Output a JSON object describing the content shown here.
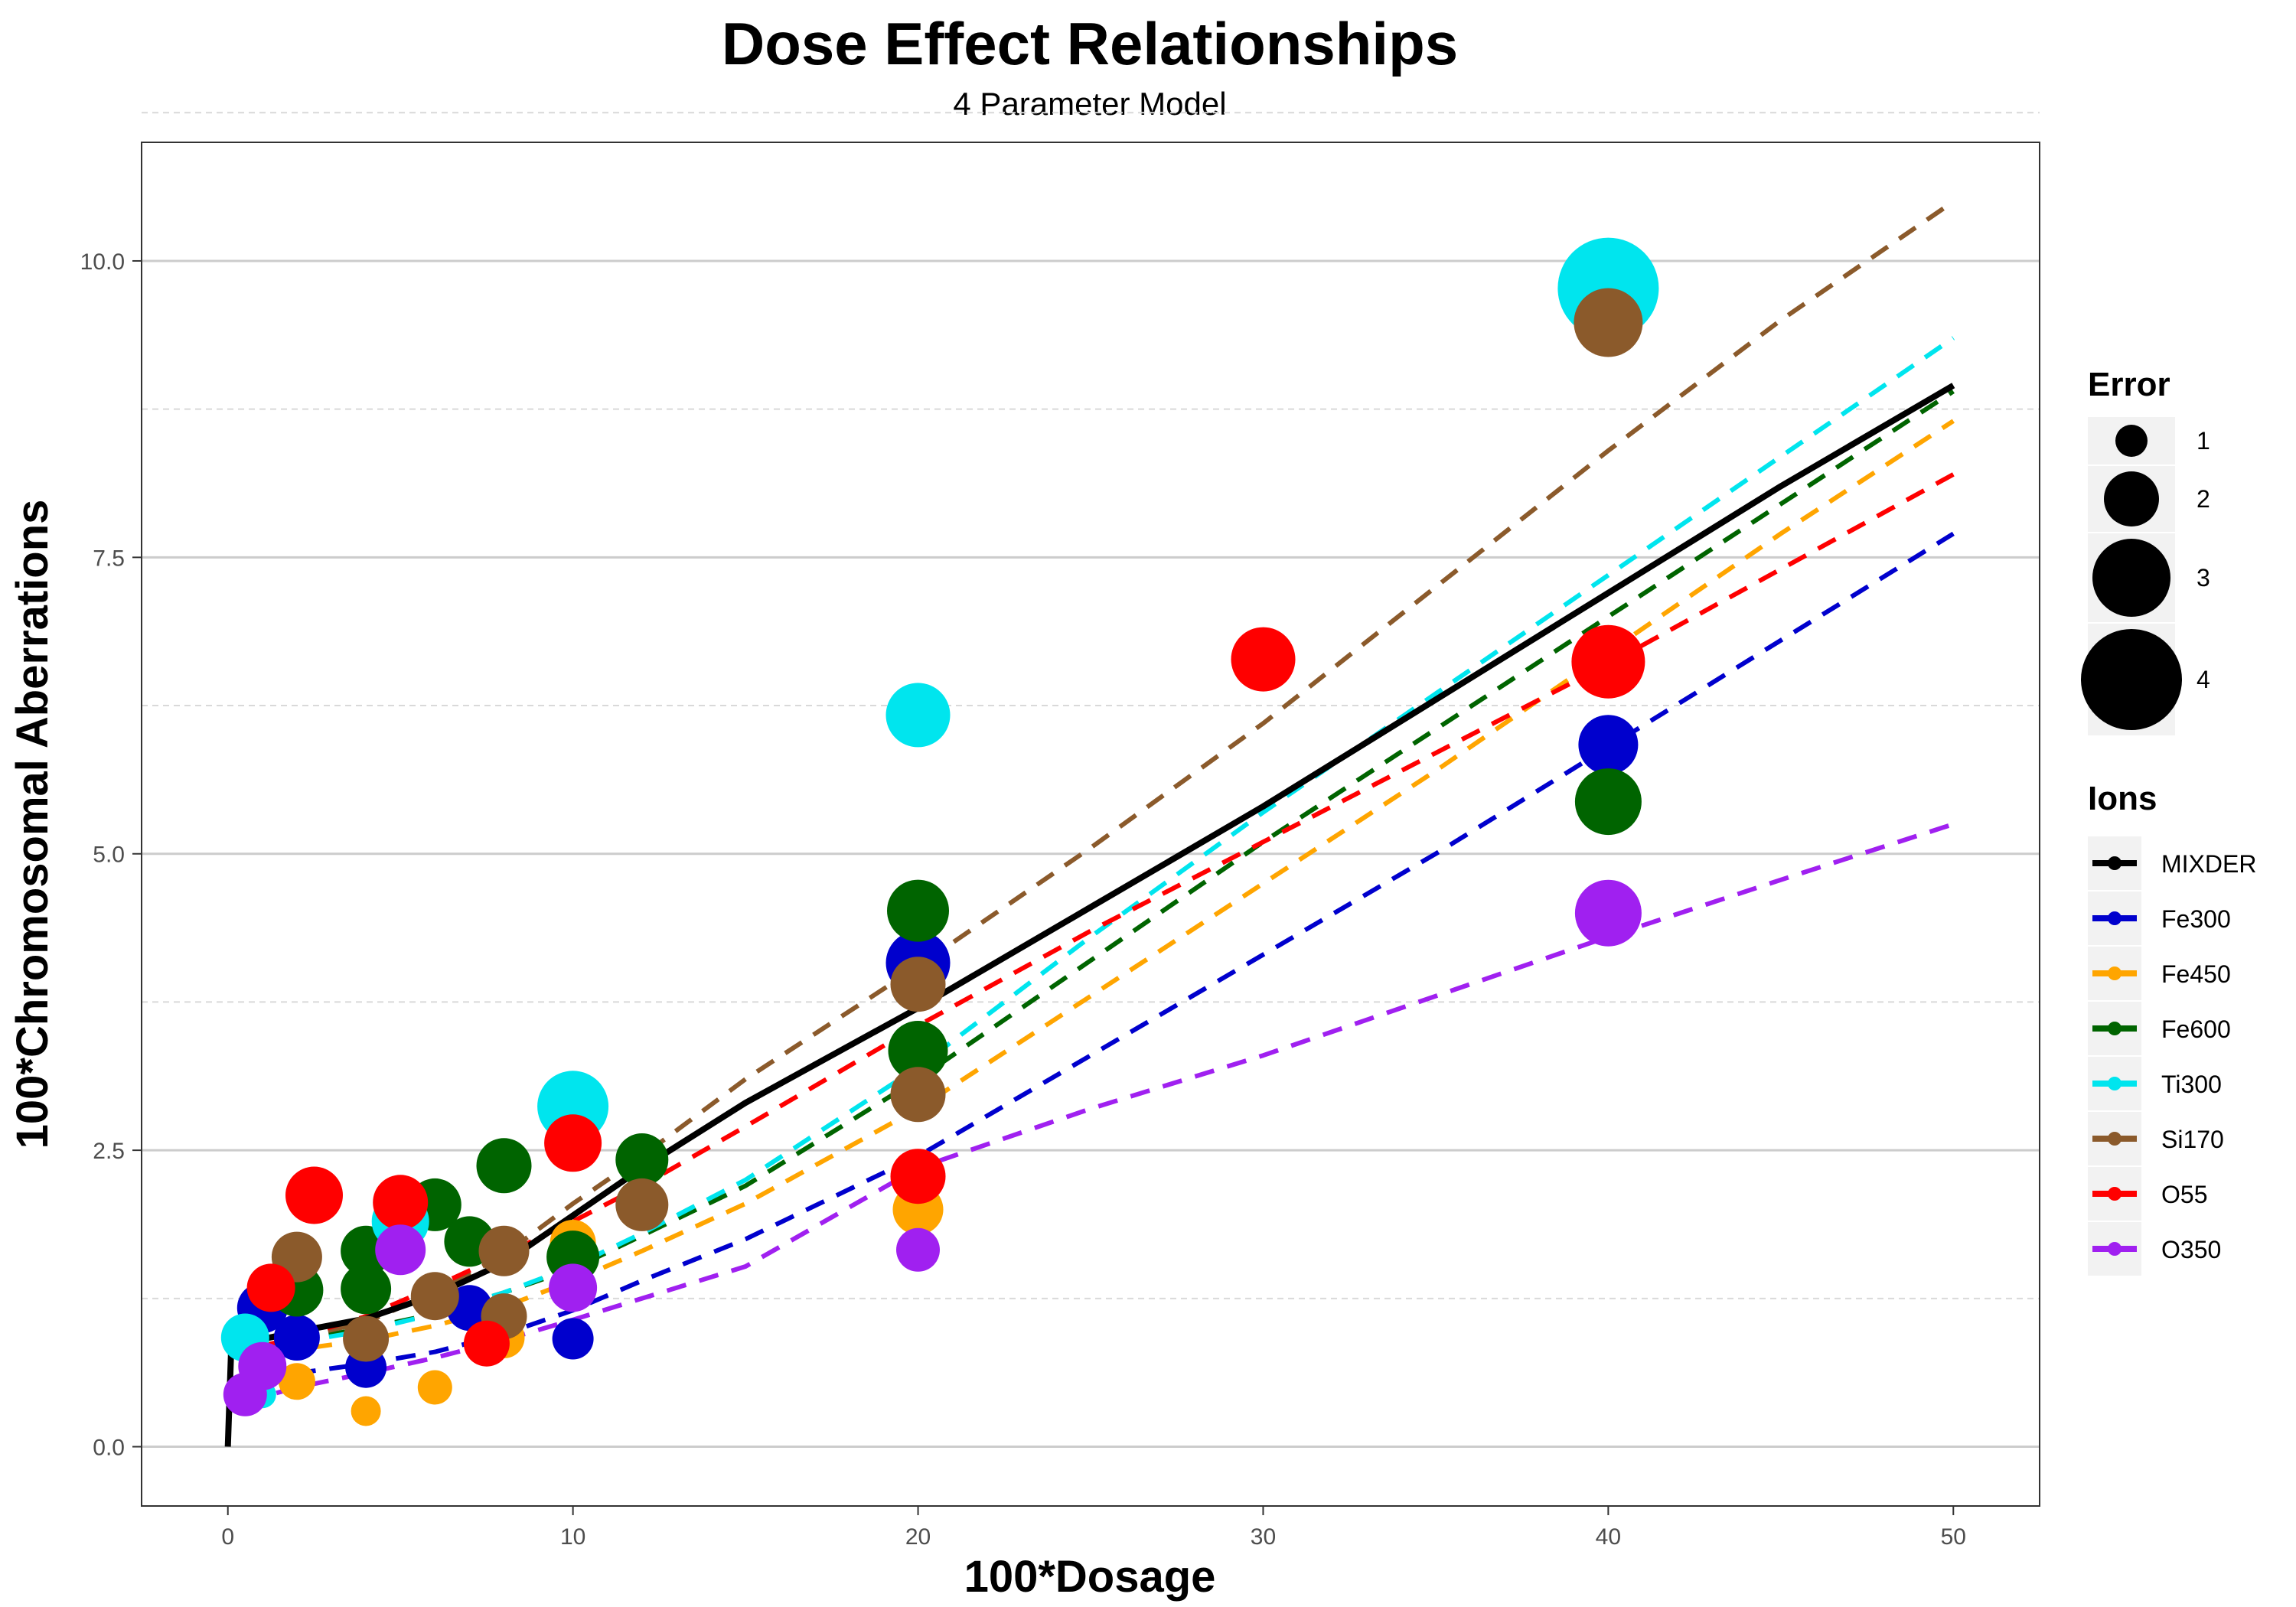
{
  "chart_data": {
    "type": "scatter",
    "title": "Dose Effect Relationships",
    "subtitle": "4 Parameter Model",
    "xlabel": "100*Dosage",
    "ylabel": "100*Chromosomal Aberrations",
    "xlim": [
      -2.5,
      52.5
    ],
    "ylim": [
      -0.5,
      11.0
    ],
    "x_ticks": [
      0,
      10,
      20,
      30,
      40,
      50
    ],
    "y_ticks": [
      0.0,
      2.5,
      5.0,
      7.5,
      10.0
    ],
    "x_tick_labels": [
      "0",
      "10",
      "20",
      "30",
      "40",
      "50"
    ],
    "y_tick_labels": [
      "0.0",
      "2.5",
      "5.0",
      "7.5",
      "10.0"
    ],
    "grid": true,
    "legend_position": "right",
    "size_legend": {
      "title": "Error",
      "entries": [
        {
          "label": "1",
          "value": 1
        },
        {
          "label": "2",
          "value": 2
        },
        {
          "label": "3",
          "value": 3
        },
        {
          "label": "4",
          "value": 4
        }
      ]
    },
    "color_legend": {
      "title": "Ions"
    },
    "series": [
      {
        "name": "MIXDER",
        "color": "#000000",
        "line_style": "solid",
        "curve": [
          [
            0,
            0.0
          ],
          [
            0.1,
            0.85
          ],
          [
            2,
            0.97
          ],
          [
            4,
            1.08
          ],
          [
            6,
            1.28
          ],
          [
            8,
            1.55
          ],
          [
            10,
            1.95
          ],
          [
            12,
            2.35
          ],
          [
            15,
            2.9
          ],
          [
            20,
            3.7
          ],
          [
            25,
            4.55
          ],
          [
            30,
            5.4
          ],
          [
            35,
            6.3
          ],
          [
            40,
            7.2
          ],
          [
            45,
            8.1
          ],
          [
            50,
            8.95
          ]
        ],
        "points": []
      },
      {
        "name": "Fe300",
        "color": "#0000cd",
        "line_style": "dashed",
        "curve": [
          [
            1,
            0.6
          ],
          [
            2,
            0.62
          ],
          [
            4,
            0.7
          ],
          [
            6,
            0.8
          ],
          [
            8,
            0.95
          ],
          [
            10,
            1.15
          ],
          [
            12,
            1.4
          ],
          [
            15,
            1.75
          ],
          [
            20,
            2.45
          ],
          [
            25,
            3.3
          ],
          [
            30,
            4.15
          ],
          [
            35,
            5.0
          ],
          [
            40,
            5.9
          ],
          [
            45,
            6.8
          ],
          [
            50,
            7.7
          ]
        ],
        "points": [
          {
            "x": 1,
            "y": 1.17,
            "error": 1.8
          },
          {
            "x": 2,
            "y": 0.92,
            "error": 1.6
          },
          {
            "x": 4,
            "y": 0.67,
            "error": 1.4
          },
          {
            "x": 7,
            "y": 1.17,
            "error": 1.6
          },
          {
            "x": 10,
            "y": 0.91,
            "error": 1.4
          },
          {
            "x": 20,
            "y": 4.08,
            "error": 2.4
          },
          {
            "x": 40,
            "y": 5.92,
            "error": 2.2
          }
        ]
      },
      {
        "name": "Fe450",
        "color": "#ffa500",
        "line_style": "dashed",
        "curve": [
          [
            0.5,
            0.8
          ],
          [
            2,
            0.82
          ],
          [
            4,
            0.9
          ],
          [
            6,
            1.02
          ],
          [
            8,
            1.18
          ],
          [
            10,
            1.4
          ],
          [
            12,
            1.65
          ],
          [
            15,
            2.05
          ],
          [
            20,
            2.85
          ],
          [
            25,
            3.8
          ],
          [
            30,
            4.75
          ],
          [
            35,
            5.7
          ],
          [
            40,
            6.7
          ],
          [
            45,
            7.7
          ],
          [
            50,
            8.65
          ]
        ],
        "points": [
          {
            "x": 2,
            "y": 0.55,
            "error": 1.2
          },
          {
            "x": 4,
            "y": 0.3,
            "error": 0.9
          },
          {
            "x": 6,
            "y": 0.5,
            "error": 1.1
          },
          {
            "x": 8,
            "y": 0.92,
            "error": 1.4
          },
          {
            "x": 10,
            "y": 1.72,
            "error": 1.6
          },
          {
            "x": 20,
            "y": 2.0,
            "error": 1.8
          },
          {
            "x": 40,
            "y": 4.45,
            "error": 1.0
          }
        ]
      },
      {
        "name": "Fe600",
        "color": "#006400",
        "line_style": "dashed",
        "curve": [
          [
            1,
            0.85
          ],
          [
            2,
            0.9
          ],
          [
            4,
            1.0
          ],
          [
            6,
            1.12
          ],
          [
            8,
            1.3
          ],
          [
            10,
            1.5
          ],
          [
            12,
            1.78
          ],
          [
            15,
            2.2
          ],
          [
            20,
            3.1
          ],
          [
            25,
            4.1
          ],
          [
            30,
            5.1
          ],
          [
            35,
            6.05
          ],
          [
            40,
            7.0
          ],
          [
            45,
            7.95
          ],
          [
            50,
            8.9
          ]
        ],
        "points": [
          {
            "x": 2,
            "y": 1.32,
            "error": 1.9
          },
          {
            "x": 4,
            "y": 1.65,
            "error": 1.8
          },
          {
            "x": 4,
            "y": 1.33,
            "error": 1.8
          },
          {
            "x": 6,
            "y": 2.04,
            "error": 1.9
          },
          {
            "x": 7,
            "y": 1.73,
            "error": 1.8
          },
          {
            "x": 8,
            "y": 2.37,
            "error": 2.0
          },
          {
            "x": 10,
            "y": 1.6,
            "error": 1.9
          },
          {
            "x": 12,
            "y": 2.42,
            "error": 1.9
          },
          {
            "x": 20,
            "y": 4.52,
            "error": 2.3
          },
          {
            "x": 20,
            "y": 3.34,
            "error": 2.2
          },
          {
            "x": 40,
            "y": 5.44,
            "error": 2.5
          }
        ]
      },
      {
        "name": "Ti300",
        "color": "#00e5ee",
        "line_style": "dashed",
        "curve": [
          [
            1,
            0.85
          ],
          [
            2,
            0.88
          ],
          [
            4,
            0.98
          ],
          [
            6,
            1.12
          ],
          [
            8,
            1.3
          ],
          [
            10,
            1.52
          ],
          [
            12,
            1.8
          ],
          [
            15,
            2.25
          ],
          [
            20,
            3.2
          ],
          [
            25,
            4.3
          ],
          [
            30,
            5.35
          ],
          [
            35,
            6.35
          ],
          [
            40,
            7.35
          ],
          [
            45,
            8.35
          ],
          [
            50,
            9.35
          ]
        ],
        "points": [
          {
            "x": 0.5,
            "y": 0.92,
            "error": 1.7
          },
          {
            "x": 1,
            "y": 0.44,
            "error": 0.8
          },
          {
            "x": 5,
            "y": 1.9,
            "error": 2.1
          },
          {
            "x": 10,
            "y": 2.87,
            "error": 2.7
          },
          {
            "x": 20,
            "y": 6.17,
            "error": 2.4
          },
          {
            "x": 40,
            "y": 9.77,
            "error": 4.0
          }
        ]
      },
      {
        "name": "Si170",
        "color": "#8b5a2b",
        "line_style": "dashed",
        "curve": [
          [
            1,
            0.85
          ],
          [
            2,
            0.92
          ],
          [
            4,
            1.05
          ],
          [
            6,
            1.3
          ],
          [
            8,
            1.62
          ],
          [
            10,
            2.05
          ],
          [
            12,
            2.45
          ],
          [
            15,
            3.1
          ],
          [
            20,
            4.05
          ],
          [
            25,
            5.05
          ],
          [
            30,
            6.1
          ],
          [
            35,
            7.25
          ],
          [
            40,
            8.4
          ],
          [
            45,
            9.5
          ],
          [
            50,
            10.5
          ]
        ],
        "points": [
          {
            "x": 1,
            "y": 0.68,
            "error": 1.4
          },
          {
            "x": 2,
            "y": 1.6,
            "error": 1.8
          },
          {
            "x": 4,
            "y": 0.91,
            "error": 1.6
          },
          {
            "x": 6,
            "y": 1.27,
            "error": 1.7
          },
          {
            "x": 8,
            "y": 1.65,
            "error": 1.8
          },
          {
            "x": 8,
            "y": 1.1,
            "error": 1.6
          },
          {
            "x": 12,
            "y": 2.04,
            "error": 1.9
          },
          {
            "x": 20,
            "y": 3.9,
            "error": 2.0
          },
          {
            "x": 20,
            "y": 2.97,
            "error": 2.0
          },
          {
            "x": 40,
            "y": 9.48,
            "error": 2.6
          }
        ]
      },
      {
        "name": "O55",
        "color": "#ff0000",
        "line_style": "dashed",
        "curve": [
          [
            1,
            0.85
          ],
          [
            2,
            0.92
          ],
          [
            4,
            1.1
          ],
          [
            6,
            1.35
          ],
          [
            8,
            1.62
          ],
          [
            10,
            1.9
          ],
          [
            12,
            2.2
          ],
          [
            15,
            2.7
          ],
          [
            20,
            3.55
          ],
          [
            25,
            4.35
          ],
          [
            30,
            5.1
          ],
          [
            35,
            5.85
          ],
          [
            40,
            6.6
          ],
          [
            45,
            7.4
          ],
          [
            50,
            8.2
          ]
        ],
        "points": [
          {
            "x": 1.25,
            "y": 1.34,
            "error": 1.7
          },
          {
            "x": 2.5,
            "y": 2.12,
            "error": 2.1
          },
          {
            "x": 5,
            "y": 2.06,
            "error": 2.0
          },
          {
            "x": 7.5,
            "y": 0.87,
            "error": 1.6
          },
          {
            "x": 10,
            "y": 2.56,
            "error": 2.1
          },
          {
            "x": 20,
            "y": 2.28,
            "error": 2.0
          },
          {
            "x": 30,
            "y": 6.64,
            "error": 2.4
          },
          {
            "x": 40,
            "y": 6.62,
            "error": 2.8
          }
        ]
      },
      {
        "name": "O350",
        "color": "#a020f0",
        "line_style": "dashed",
        "curve": [
          [
            0.5,
            0.35
          ],
          [
            1,
            0.42
          ],
          [
            2,
            0.5
          ],
          [
            4,
            0.62
          ],
          [
            6,
            0.75
          ],
          [
            8,
            0.9
          ],
          [
            10,
            1.07
          ],
          [
            12,
            1.25
          ],
          [
            15,
            1.52
          ],
          [
            20,
            2.35
          ],
          [
            25,
            2.85
          ],
          [
            30,
            3.3
          ],
          [
            35,
            3.8
          ],
          [
            40,
            4.3
          ],
          [
            45,
            4.78
          ],
          [
            50,
            5.25
          ]
        ],
        "points": [
          {
            "x": 0.5,
            "y": 0.44,
            "error": 1.5
          },
          {
            "x": 1,
            "y": 0.68,
            "error": 1.7
          },
          {
            "x": 5,
            "y": 1.66,
            "error": 1.8
          },
          {
            "x": 10,
            "y": 1.34,
            "error": 1.7
          },
          {
            "x": 20,
            "y": 1.66,
            "error": 1.5
          },
          {
            "x": 40,
            "y": 4.5,
            "error": 2.5
          }
        ]
      }
    ]
  }
}
